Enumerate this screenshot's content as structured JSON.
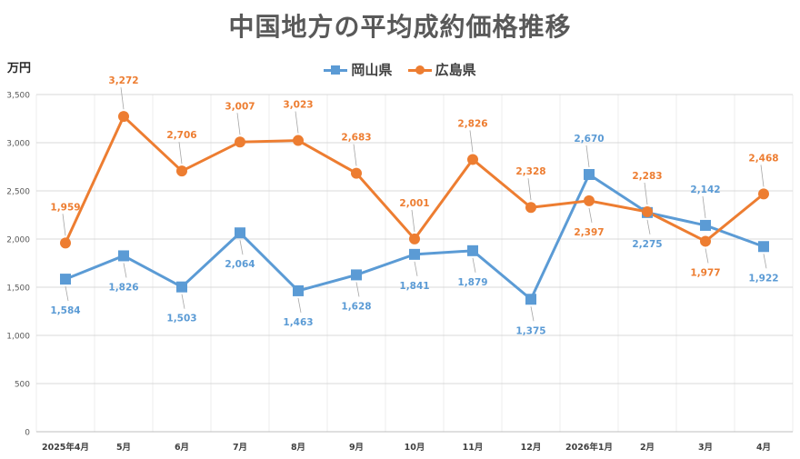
{
  "chart_data": {
    "type": "line",
    "title": "中国地方の平均成約価格推移",
    "ylabel": "万円",
    "ylim": [
      0,
      3500
    ],
    "yticks": [
      0,
      500,
      1000,
      1500,
      2000,
      2500,
      3000,
      3500
    ],
    "ytick_labels": [
      "0",
      "500",
      "1,000",
      "1,500",
      "2,000",
      "2,500",
      "3,000",
      "3,500"
    ],
    "grid": true,
    "legend_position": "top",
    "categories": [
      "2025年4月",
      "5月",
      "6月",
      "7月",
      "8月",
      "9月",
      "10月",
      "11月",
      "12月",
      "2026年1月",
      "2月",
      "3月",
      "4月"
    ],
    "series": [
      {
        "name": "岡山県",
        "color": "#5B9BD5",
        "marker": "square",
        "values": [
          1584,
          1826,
          1503,
          2064,
          1463,
          1628,
          1841,
          1879,
          1375,
          2670,
          2275,
          2142,
          1922
        ],
        "labels": [
          "1,584",
          "1,826",
          "1,503",
          "2,064",
          "1,463",
          "1,628",
          "1,841",
          "1,879",
          "1,375",
          "2,670",
          "2,275",
          "2,142",
          "1,922"
        ]
      },
      {
        "name": "広島県",
        "color": "#ED7D31",
        "marker": "circle",
        "values": [
          1959,
          3272,
          2706,
          3007,
          3023,
          2683,
          2001,
          2826,
          2328,
          2397,
          2283,
          1977,
          2468
        ],
        "labels": [
          "1,959",
          "3,272",
          "2,706",
          "3,007",
          "3,023",
          "2,683",
          "2,001",
          "2,826",
          "2,328",
          "2,397",
          "2,283",
          "1,977",
          "2,468"
        ]
      }
    ]
  }
}
